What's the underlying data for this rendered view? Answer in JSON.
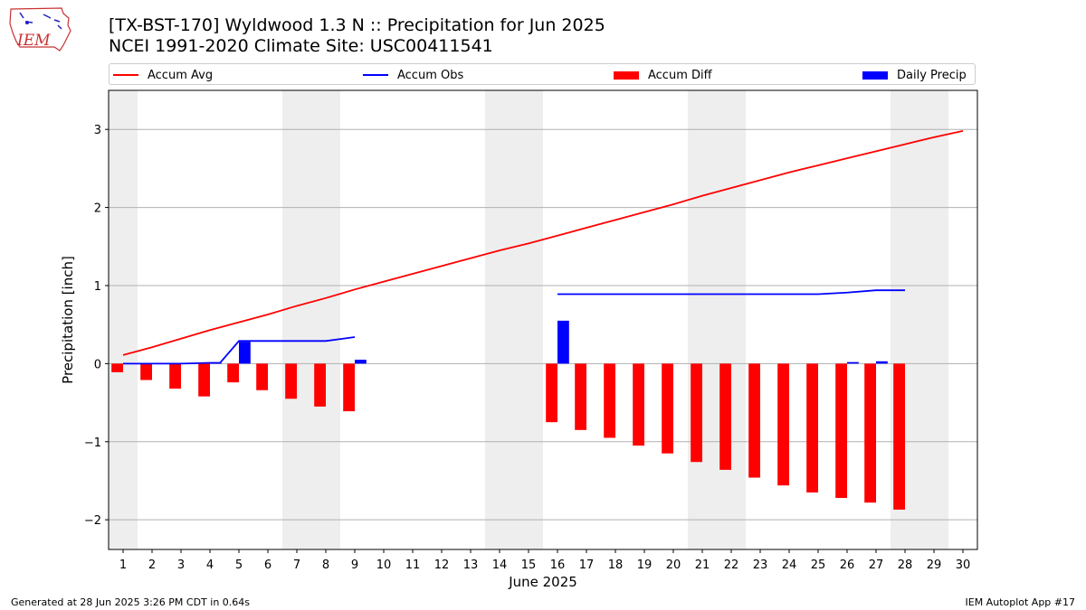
{
  "header": {
    "logo_text": "IEM",
    "title_line1": "[TX-BST-170] Wyldwood 1.3 N :: Precipitation for Jun 2025",
    "title_line2": "NCEI 1991-2020 Climate Site: USC00411541"
  },
  "footer": {
    "generated": "Generated at 28 Jun 2025 3:26 PM CDT in 0.64s",
    "app": "IEM Autoplot App #17"
  },
  "colors": {
    "accum_avg": "#ff0000",
    "accum_obs": "#0000ff",
    "accum_diff": "#ff0000",
    "daily_precip": "#0000ff",
    "weekend_shade": "#eeeeee",
    "grid": "#b0b0b0"
  },
  "chart_data": {
    "type": "bar",
    "xlabel": "June 2025",
    "ylabel": "Precipitation [inch]",
    "xlim": [
      0.5,
      30.5
    ],
    "ylim": [
      -2.38,
      3.5
    ],
    "yticks": [
      -2,
      -1,
      0,
      1,
      2,
      3
    ],
    "ytick_labels": [
      "−2",
      "−1",
      "0",
      "1",
      "2",
      "3"
    ],
    "grid": "horizontal",
    "legend_placement": "top",
    "days": [
      1,
      2,
      3,
      4,
      5,
      6,
      7,
      8,
      9,
      10,
      11,
      12,
      13,
      14,
      15,
      16,
      17,
      18,
      19,
      20,
      21,
      22,
      23,
      24,
      25,
      26,
      27,
      28,
      29,
      30
    ],
    "weekend_days": [
      1,
      7,
      8,
      14,
      15,
      21,
      22,
      28,
      29
    ],
    "legend": {
      "accum_avg": "Accum Avg",
      "accum_obs": "Accum Obs",
      "accum_diff": "Accum Diff",
      "daily_precip": "Daily Precip"
    },
    "series": [
      {
        "name": "Accum Avg",
        "type": "line",
        "x": [
          1,
          2,
          3,
          4,
          5,
          6,
          7,
          8,
          9,
          10,
          11,
          12,
          13,
          14,
          15,
          16,
          17,
          18,
          19,
          20,
          21,
          22,
          23,
          24,
          25,
          26,
          27,
          28,
          29,
          30
        ],
        "values": [
          0.11,
          0.21,
          0.32,
          0.43,
          0.53,
          0.63,
          0.74,
          0.84,
          0.95,
          1.05,
          1.15,
          1.25,
          1.35,
          1.45,
          1.54,
          1.64,
          1.74,
          1.84,
          1.94,
          2.04,
          2.15,
          2.25,
          2.35,
          2.45,
          2.54,
          2.63,
          2.72,
          2.81,
          2.9,
          2.98
        ]
      },
      {
        "name": "Accum Obs",
        "type": "line",
        "segments": [
          {
            "x": [
              1,
              2,
              3,
              4,
              4.35,
              5,
              6,
              7,
              8,
              9
            ],
            "values": [
              0.0,
              0.0,
              0.0,
              0.01,
              0.01,
              0.29,
              0.29,
              0.29,
              0.29,
              0.34
            ]
          },
          {
            "x": [
              16,
              17,
              18,
              19,
              20,
              21,
              22,
              23,
              24,
              25,
              26,
              27,
              28
            ],
            "values": [
              0.89,
              0.89,
              0.89,
              0.89,
              0.89,
              0.89,
              0.89,
              0.89,
              0.89,
              0.89,
              0.91,
              0.94,
              0.94
            ]
          }
        ]
      },
      {
        "name": "Accum Diff",
        "type": "bar",
        "x": [
          1,
          2,
          3,
          4,
          5,
          6,
          7,
          8,
          9,
          16,
          17,
          18,
          19,
          20,
          21,
          22,
          23,
          24,
          25,
          26,
          27,
          28
        ],
        "values": [
          -0.11,
          -0.21,
          -0.32,
          -0.42,
          -0.24,
          -0.34,
          -0.45,
          -0.55,
          -0.61,
          -0.75,
          -0.85,
          -0.95,
          -1.05,
          -1.15,
          -1.26,
          -1.36,
          -1.46,
          -1.56,
          -1.65,
          -1.72,
          -1.78,
          -1.87
        ]
      },
      {
        "name": "Daily Precip",
        "type": "bar",
        "x": [
          4,
          5,
          9,
          16,
          26,
          27
        ],
        "values": [
          0.01,
          0.28,
          0.05,
          0.55,
          0.02,
          0.03
        ]
      }
    ]
  }
}
